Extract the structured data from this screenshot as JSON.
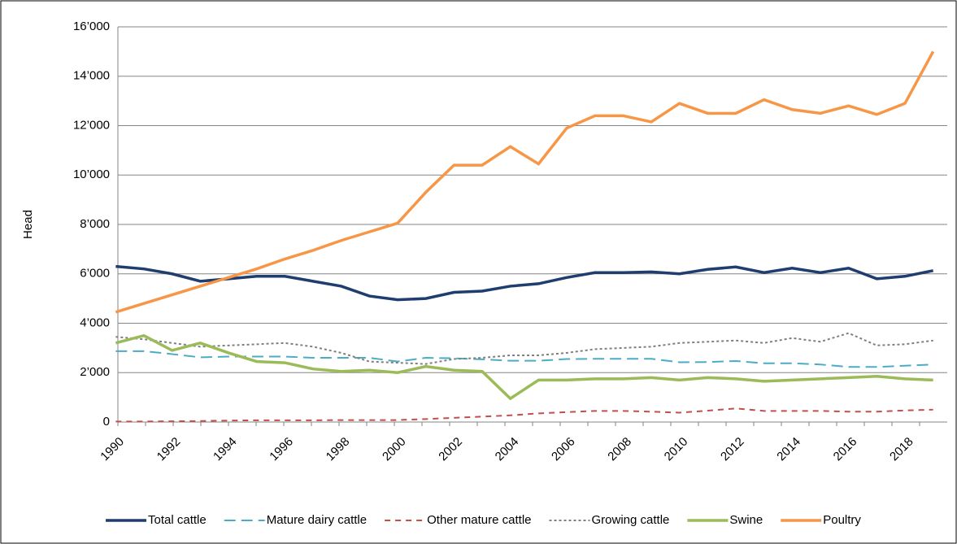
{
  "chart_data": {
    "type": "line",
    "y_label": "Head",
    "categories": [
      "1990",
      null,
      "1992",
      null,
      "1994",
      null,
      "1996",
      null,
      "1998",
      null,
      "2000",
      null,
      "2002",
      null,
      "2004",
      null,
      "2006",
      null,
      "2008",
      null,
      "2010",
      null,
      "2012",
      null,
      "2014",
      null,
      "2016",
      null,
      "2018",
      null
    ],
    "ylim": [
      0,
      16000
    ],
    "yticks": [
      0,
      {
        "value": 2000,
        "label": "2’000"
      },
      {
        "value": 4000,
        "label": "4’000"
      },
      {
        "value": 6000,
        "label": "6’000"
      },
      {
        "value": 8000,
        "label": "8’000"
      },
      {
        "value": 10000,
        "label": "10’000"
      },
      {
        "value": 12000,
        "label": "12’000"
      },
      {
        "value": 14000,
        "label": "14’000"
      },
      {
        "value": 16000,
        "label": "16’000"
      }
    ],
    "grid": true,
    "legend": "bottom",
    "series": [
      {
        "name": "Total cattle",
        "color": "#1f3d6e",
        "dash": "solid",
        "values": [
          6300,
          6200,
          6000,
          5700,
          5800,
          5900,
          5900,
          5700,
          5500,
          5100,
          4950,
          5000,
          5250,
          5300,
          5500,
          5600,
          5850,
          6050,
          6050,
          6080,
          6000,
          6180,
          6280,
          6050,
          6230,
          6050,
          6230,
          5800,
          5900,
          6130
        ]
      },
      {
        "name": "Mature dairy cattle",
        "color": "#4bacc6",
        "dash": "long",
        "values": [
          2870,
          2870,
          2750,
          2620,
          2650,
          2650,
          2650,
          2600,
          2600,
          2600,
          2450,
          2600,
          2580,
          2540,
          2480,
          2480,
          2550,
          2560,
          2560,
          2560,
          2420,
          2430,
          2470,
          2380,
          2380,
          2330,
          2230,
          2230,
          2280,
          2330
        ]
      },
      {
        "name": "Other mature cattle",
        "color": "#c0504d",
        "dash": "medium",
        "values": [
          20,
          20,
          30,
          40,
          60,
          70,
          70,
          70,
          80,
          80,
          80,
          120,
          170,
          220,
          270,
          350,
          400,
          450,
          450,
          420,
          380,
          460,
          550,
          450,
          450,
          450,
          420,
          420,
          470,
          500
        ]
      },
      {
        "name": "Growing cattle",
        "color": "#7f7f7f",
        "dash": "short",
        "values": [
          3450,
          3350,
          3200,
          3050,
          3100,
          3150,
          3200,
          3050,
          2800,
          2450,
          2400,
          2350,
          2550,
          2600,
          2700,
          2700,
          2800,
          2950,
          3000,
          3050,
          3200,
          3250,
          3300,
          3200,
          3400,
          3250,
          3600,
          3100,
          3150,
          3300
        ]
      },
      {
        "name": "Swine",
        "color": "#9bbb59",
        "dash": "solid",
        "values": [
          3200,
          3500,
          2900,
          3200,
          2800,
          2450,
          2400,
          2150,
          2050,
          2100,
          2000,
          2250,
          2100,
          2050,
          950,
          1700,
          1700,
          1750,
          1750,
          1800,
          1700,
          1800,
          1750,
          1650,
          1700,
          1750,
          1800,
          1850,
          1750,
          1700
        ]
      },
      {
        "name": "Poultry",
        "color": "#f79646",
        "dash": "solid",
        "values": [
          4450,
          4800,
          5150,
          5500,
          5850,
          6200,
          6600,
          6950,
          7350,
          7700,
          8050,
          9300,
          10400,
          10400,
          11150,
          10450,
          11900,
          12400,
          12400,
          12150,
          12900,
          12500,
          12500,
          13050,
          12650,
          12500,
          12800,
          12450,
          12900,
          15000
        ]
      }
    ]
  }
}
